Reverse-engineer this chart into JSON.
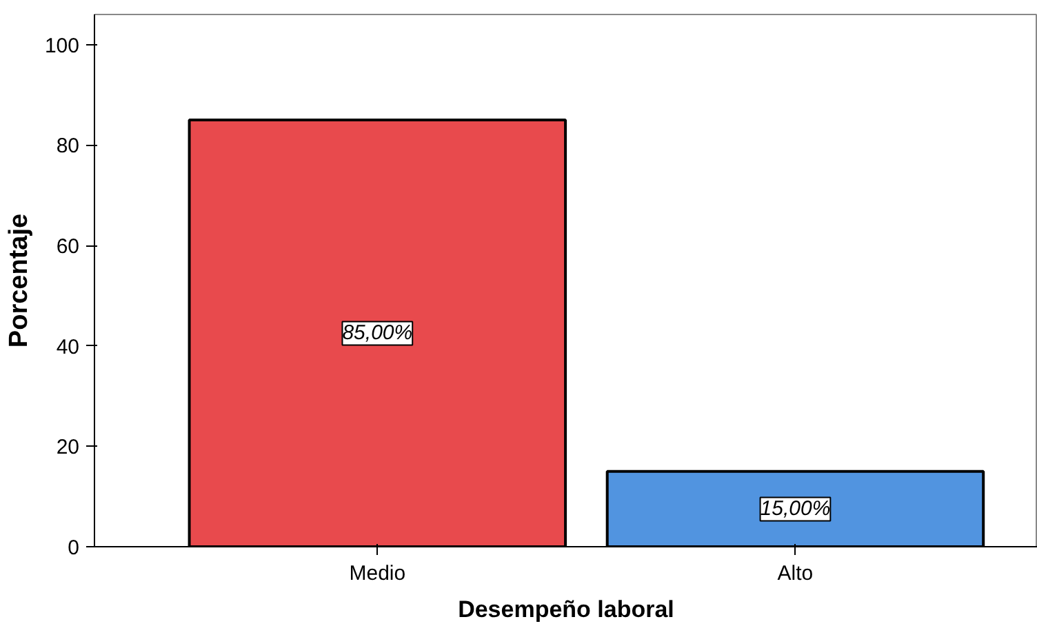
{
  "chart_data": {
    "type": "bar",
    "categories": [
      "Medio",
      "Alto"
    ],
    "values": [
      85,
      15
    ],
    "colors": [
      "#e84a4d",
      "#5194e0"
    ],
    "value_labels": [
      "85,00%",
      "15,00%"
    ],
    "xlabel": "Desempeño laboral",
    "ylabel": "Porcentaje",
    "ylim": [
      0,
      106
    ],
    "yticks": [
      0,
      20,
      40,
      60,
      80,
      100
    ],
    "grid": false
  }
}
